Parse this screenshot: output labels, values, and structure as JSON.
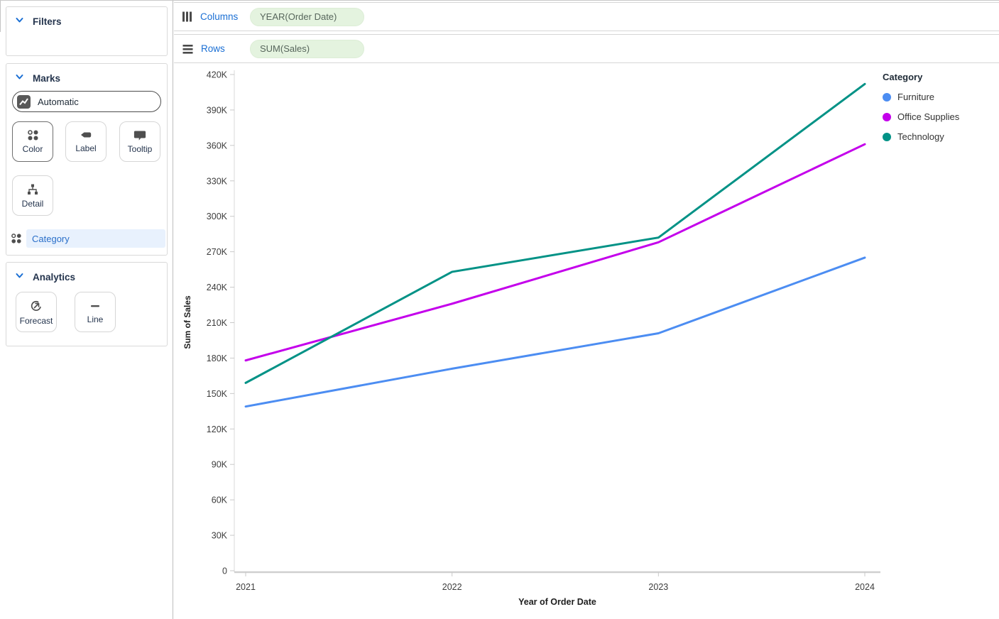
{
  "sidebar": {
    "filters": {
      "title": "Filters"
    },
    "marks": {
      "title": "Marks",
      "mark_type": "Automatic",
      "buttons": [
        {
          "label": "Color"
        },
        {
          "label": "Label"
        },
        {
          "label": "Tooltip"
        },
        {
          "label": "Detail"
        }
      ],
      "encoding_field": "Category"
    },
    "analytics": {
      "title": "Analytics",
      "buttons": [
        {
          "label": "Forecast"
        },
        {
          "label": "Line"
        }
      ]
    }
  },
  "shelves": {
    "columns": {
      "label": "Columns",
      "pill": "YEAR(Order Date)"
    },
    "rows": {
      "label": "Rows",
      "pill": "SUM(Sales)"
    }
  },
  "chart_data": {
    "type": "line",
    "x": [
      2021,
      2022,
      2023,
      2024
    ],
    "series": [
      {
        "name": "Furniture",
        "color": "#4C8DF2",
        "values": [
          139000,
          171000,
          201000,
          265000
        ]
      },
      {
        "name": "Office Supplies",
        "color": "#C400EB",
        "values": [
          178000,
          226000,
          278000,
          361000
        ]
      },
      {
        "name": "Technology",
        "color": "#029286",
        "values": [
          159000,
          253000,
          282000,
          412000
        ]
      }
    ],
    "xlabel": "Year of Order Date",
    "ylabel": "Sum of Sales",
    "ylim": [
      0,
      420000
    ],
    "ytick_step": 30000,
    "yticks": [
      "0",
      "30K",
      "60K",
      "90K",
      "120K",
      "150K",
      "180K",
      "210K",
      "240K",
      "270K",
      "300K",
      "330K",
      "360K",
      "390K",
      "420K"
    ],
    "legend": {
      "title": "Category",
      "position": "right"
    },
    "grid": false
  }
}
